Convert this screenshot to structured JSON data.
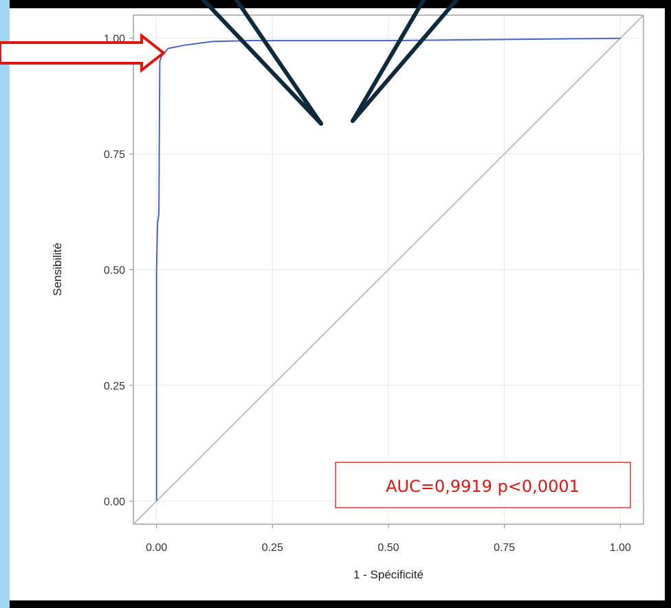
{
  "chart_data": {
    "type": "line",
    "xlabel": "1 - Spécificité",
    "ylabel": "Sensibilité",
    "xlim": [
      -0.05,
      1.05
    ],
    "ylim": [
      -0.05,
      1.05
    ],
    "x_ticks": [
      "0.00",
      "0.25",
      "0.50",
      "0.75",
      "1.00"
    ],
    "y_ticks": [
      "0.00",
      "0.25",
      "0.50",
      "0.75",
      "1.00"
    ],
    "grid": true,
    "series": [
      {
        "color": "#4466c6",
        "x": [
          0.0,
          0.0,
          0.002,
          0.005,
          0.007,
          0.01,
          0.025,
          0.06,
          0.12,
          0.2,
          0.5,
          1.0
        ],
        "y": [
          0.0,
          0.5,
          0.6,
          0.62,
          0.95,
          0.96,
          0.978,
          0.985,
          0.993,
          0.995,
          0.995,
          1.0
        ]
      }
    ],
    "reference_line": {
      "x": [
        -0.05,
        1.05
      ],
      "y": [
        -0.05,
        1.05
      ],
      "color": "#b4b4b4"
    },
    "annotation": {
      "text": "AUC=0,9919 p<0,0001",
      "color": "#e0160f"
    }
  },
  "colors": {
    "frame_outer": "#000000",
    "frame_left": "#9fd6f3",
    "plot_border": "#8a8a8a",
    "grid": "#e8e8e8",
    "arrow": "#e0160f",
    "pointer_lines": "#0e2a3c"
  }
}
